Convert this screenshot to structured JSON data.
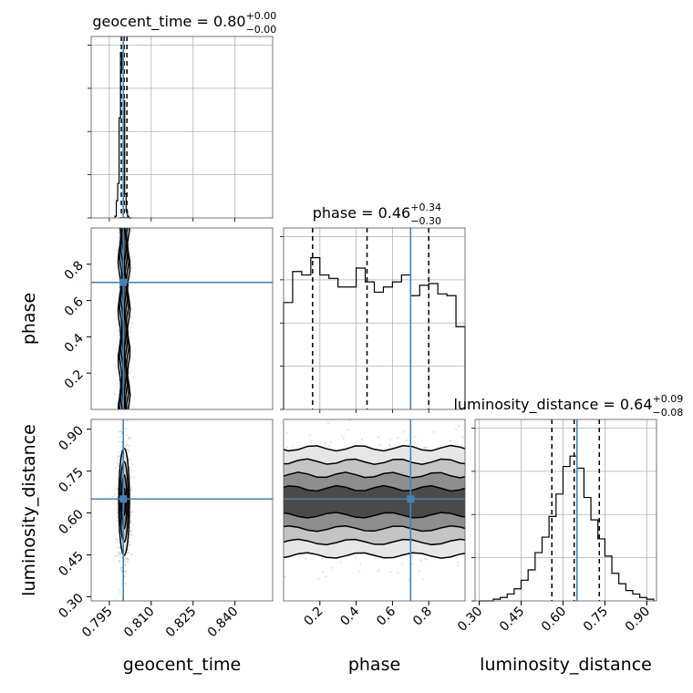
{
  "chart_data": {
    "type": "corner",
    "parameters": [
      "geocent_time",
      "phase",
      "luminosity_distance"
    ],
    "truths": {
      "geocent_time": 0.8,
      "phase": 0.7,
      "luminosity_distance": 0.65
    },
    "colors": {
      "truth": "#4682b4",
      "hist": "#000000",
      "grid": "#b0b0b0",
      "points": "#888888"
    },
    "ranges": {
      "geocent_time": [
        0.7885,
        0.8535
      ],
      "phase": [
        0.0,
        1.0
      ],
      "luminosity_distance": [
        0.285,
        0.935
      ]
    },
    "ticks": {
      "geocent_time": {
        "values": [
          0.795,
          0.81,
          0.825,
          0.84
        ],
        "labels": [
          "0.795",
          "0.810",
          "0.825",
          "0.840"
        ]
      },
      "phase": {
        "values": [
          0.2,
          0.4,
          0.6,
          0.8
        ],
        "labels": [
          "0.2",
          "0.4",
          "0.6",
          "0.8"
        ]
      },
      "luminosity_distance": {
        "values": [
          0.3,
          0.45,
          0.6,
          0.75,
          0.9
        ],
        "labels": [
          "0.30",
          "0.45",
          "0.60",
          "0.75",
          "0.90"
        ]
      }
    },
    "titles": [
      {
        "param": "geocent_time",
        "label": "geocent_time",
        "value": "0.80",
        "plus": "+0.00",
        "minus": "−0.00"
      },
      {
        "param": "phase",
        "label": "phase",
        "value": "0.46",
        "plus": "+0.34",
        "minus": "−0.30"
      },
      {
        "param": "luminosity_distance",
        "label": "luminosity_distance",
        "value": "0.64",
        "plus": "+0.09",
        "minus": "−0.08"
      }
    ],
    "quantiles": {
      "geocent_time": [
        0.7993,
        0.8003,
        0.8013
      ],
      "phase": [
        0.16,
        0.46,
        0.8
      ],
      "luminosity_distance": [
        0.56,
        0.64,
        0.73
      ]
    },
    "histograms": {
      "geocent_time": {
        "edges": [
          0.797,
          0.7975,
          0.798,
          0.7985,
          0.799,
          0.7995,
          0.8,
          0.8005,
          0.801,
          0.8015,
          0.802,
          0.8025,
          0.803
        ],
        "counts": [
          0.01,
          0.1,
          0.2,
          0.58,
          0.96,
          0.86,
          0.68,
          0.14,
          0.04,
          0.01,
          0,
          0
        ]
      },
      "phase": {
        "edges": [
          0,
          0.05,
          0.1,
          0.15,
          0.2,
          0.25,
          0.3,
          0.35,
          0.4,
          0.45,
          0.5,
          0.55,
          0.6,
          0.65,
          0.7,
          0.75,
          0.8,
          0.85,
          0.9,
          0.95,
          1.0
        ],
        "counts": [
          0.62,
          0.8,
          0.78,
          0.88,
          0.78,
          0.76,
          0.71,
          0.71,
          0.82,
          0.74,
          0.68,
          0.71,
          0.74,
          0.78,
          0.66,
          0.72,
          0.73,
          0.67,
          0.66,
          0.48
        ]
      },
      "luminosity_distance": {
        "edges": [
          0.3,
          0.325,
          0.35,
          0.375,
          0.4,
          0.425,
          0.45,
          0.475,
          0.5,
          0.525,
          0.55,
          0.575,
          0.6,
          0.625,
          0.65,
          0.675,
          0.7,
          0.725,
          0.75,
          0.775,
          0.8,
          0.825,
          0.85,
          0.875,
          0.9,
          0.925
        ],
        "counts": [
          0,
          0,
          0.01,
          0.02,
          0.04,
          0.07,
          0.12,
          0.18,
          0.28,
          0.37,
          0.49,
          0.62,
          0.78,
          0.84,
          0.77,
          0.6,
          0.47,
          0.36,
          0.26,
          0.16,
          0.1,
          0.06,
          0.04,
          0.02,
          0.01
        ]
      }
    },
    "density_2d": [
      {
        "x": "geocent_time",
        "y": "phase",
        "cx": 0.8003,
        "cy": 0.5,
        "sx": 0.0007,
        "sy": 0.3,
        "shape": "vertical-band"
      },
      {
        "x": "geocent_time",
        "y": "luminosity_distance",
        "cx": 0.8003,
        "cy": 0.64,
        "sx": 0.0008,
        "sy": 0.08,
        "shape": "ellipse"
      },
      {
        "x": "phase",
        "y": "luminosity_distance",
        "cx": 0.5,
        "cy": 0.64,
        "sx": 0.3,
        "sy": 0.08,
        "shape": "horizontal-band"
      }
    ],
    "grid": true
  }
}
